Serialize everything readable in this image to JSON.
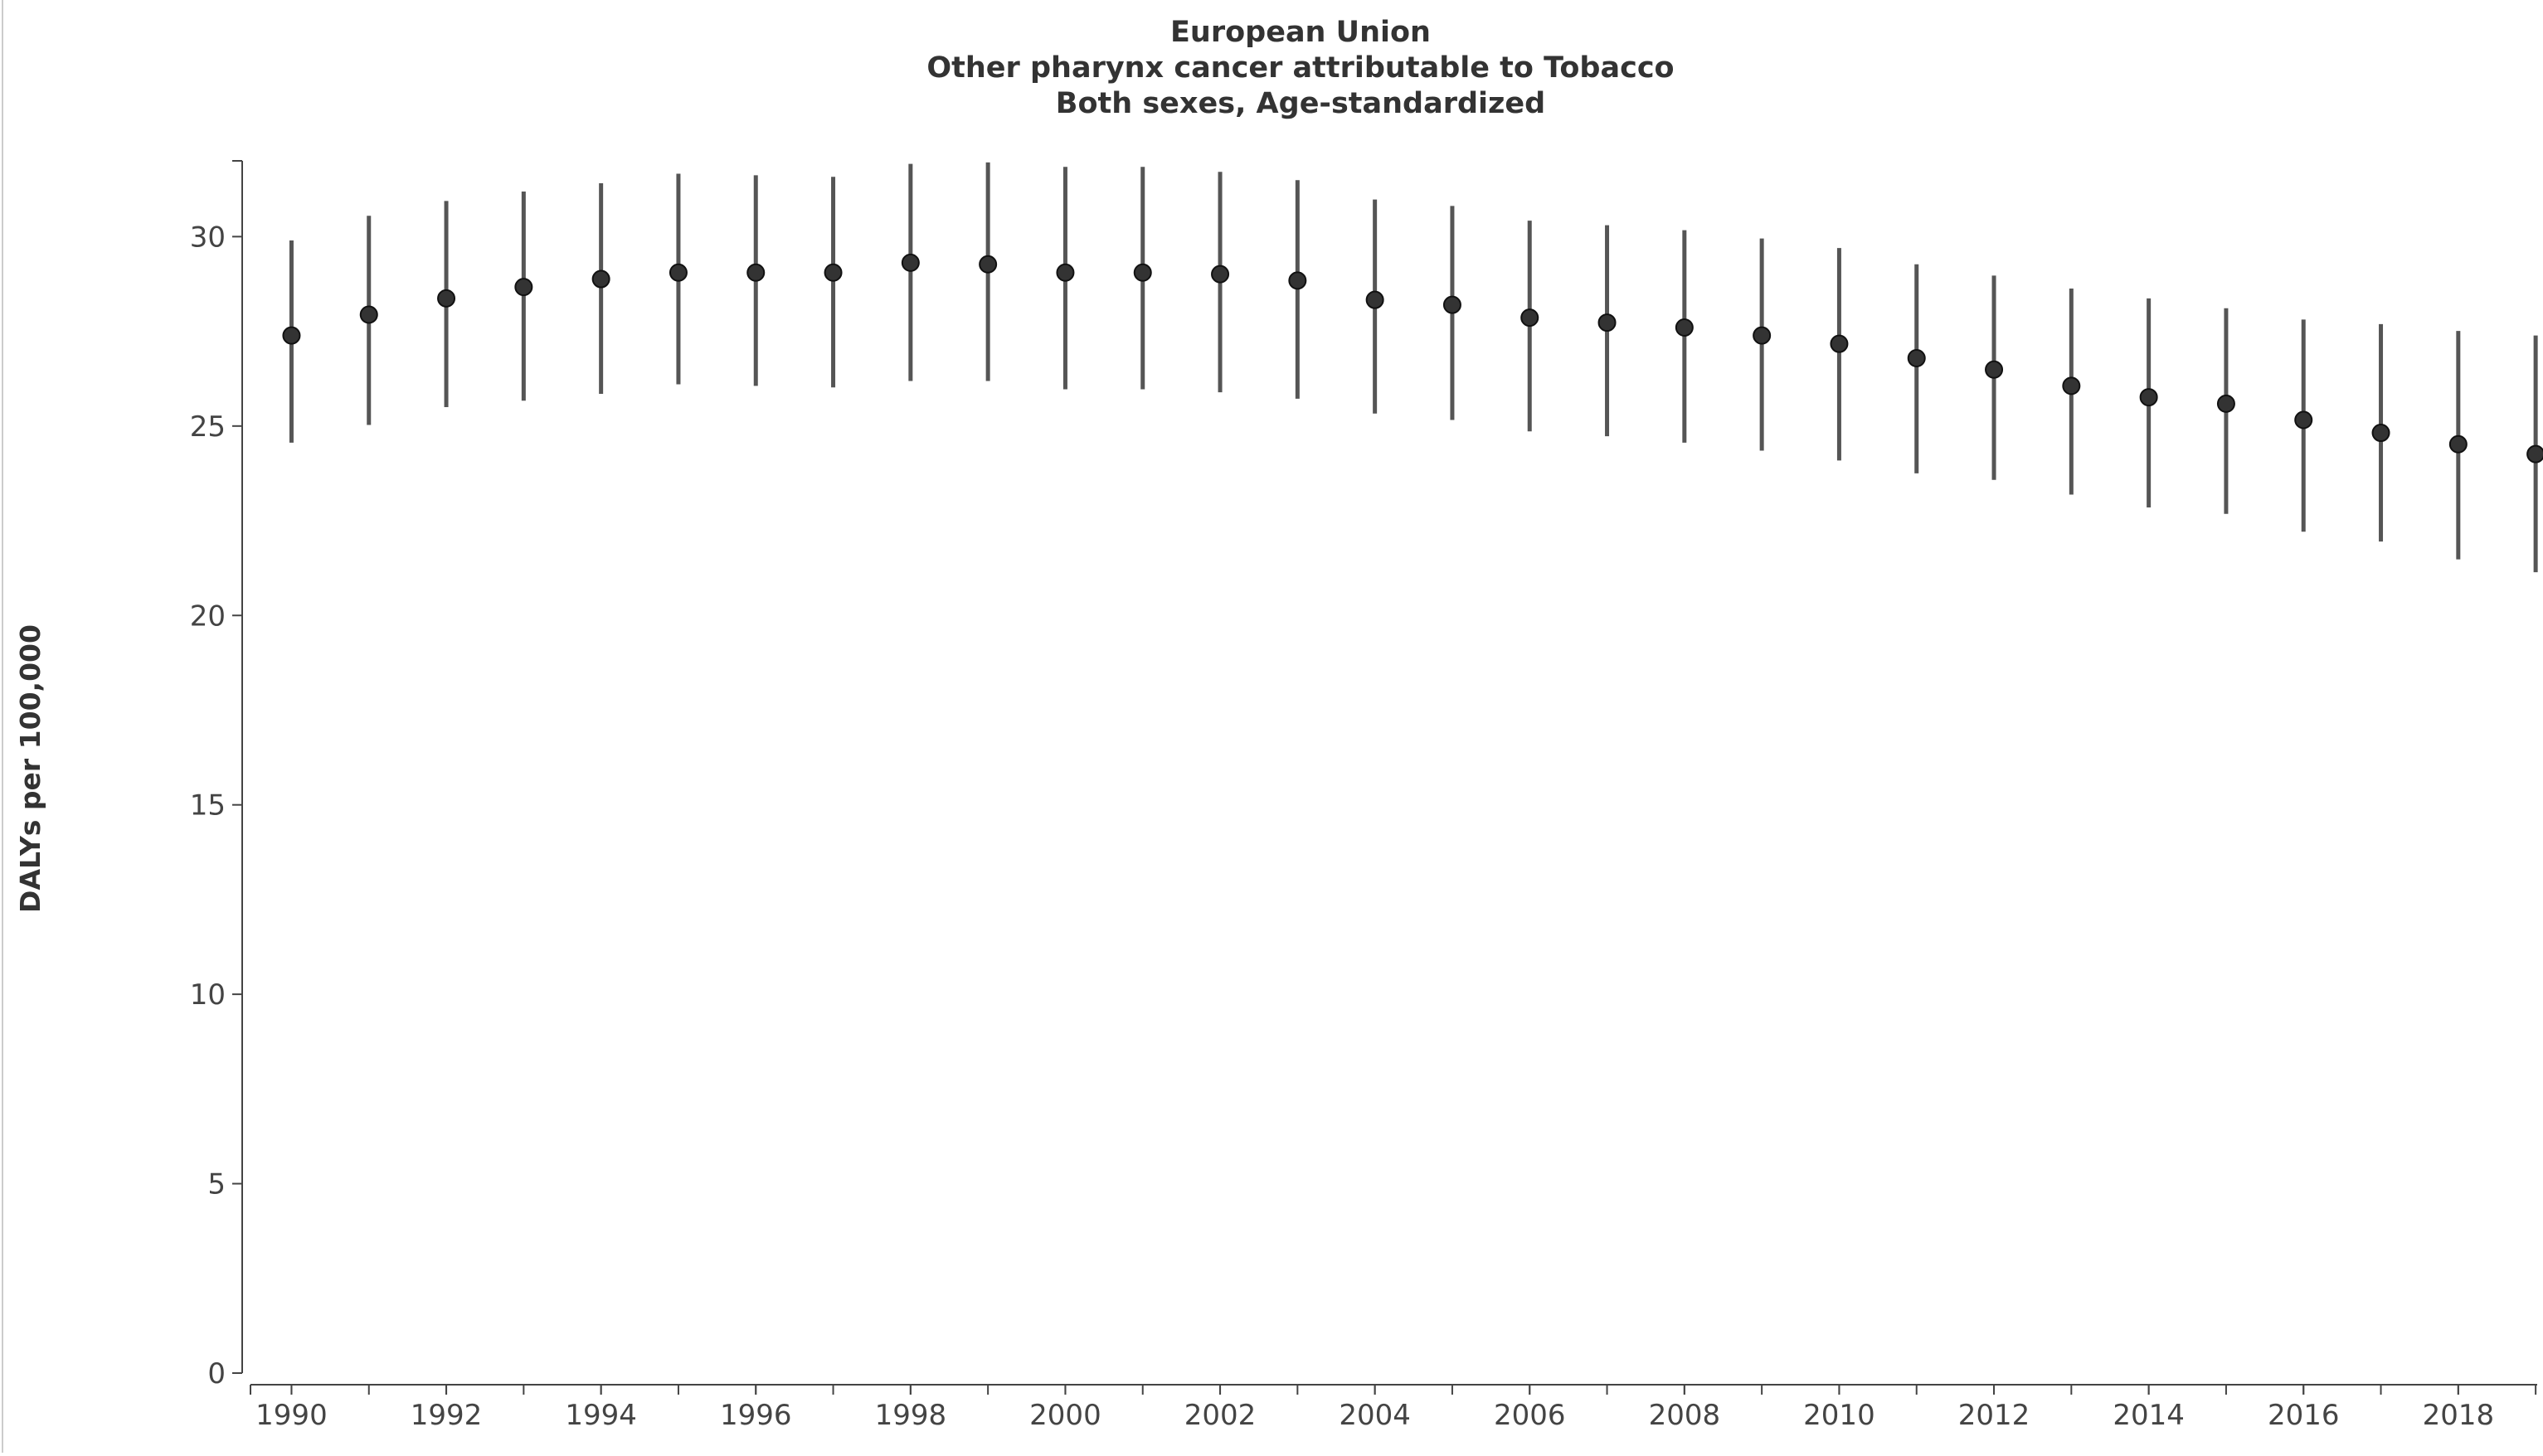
{
  "chart_data": {
    "type": "errorbar",
    "title": "European Union",
    "subtitle": "Other pharynx cancer attributable to Tobacco",
    "subtitle2": "Both sexes, Age-standardized",
    "y_label": "DALYs per 100,000",
    "x": [
      1990,
      1991,
      1992,
      1993,
      1994,
      1995,
      1996,
      1997,
      1998,
      1999,
      2000,
      2001,
      2002,
      2003,
      2004,
      2005,
      2006,
      2007,
      2008,
      2009,
      2010,
      2011,
      2012,
      2013,
      2014,
      2015,
      2016,
      2017,
      2018,
      2019
    ],
    "series": [
      {
        "color": "#333333",
        "values": [
          27.39,
          27.94,
          28.37,
          28.67,
          28.88,
          29.05,
          29.05,
          29.05,
          29.31,
          29.27,
          29.05,
          29.05,
          29.01,
          28.84,
          28.33,
          28.2,
          27.86,
          27.73,
          27.6,
          27.39,
          27.17,
          26.79,
          26.49,
          26.06,
          25.76,
          25.59,
          25.16,
          24.82,
          24.52,
          24.26
        ],
        "lower": [
          24.56,
          25.03,
          25.5,
          25.67,
          25.85,
          26.1,
          26.06,
          26.02,
          26.19,
          26.19,
          25.97,
          25.97,
          25.89,
          25.72,
          25.33,
          25.16,
          24.86,
          24.73,
          24.56,
          24.35,
          24.09,
          23.75,
          23.58,
          23.19,
          22.85,
          22.68,
          22.21,
          21.95,
          21.48,
          21.14
        ],
        "upper": [
          29.9,
          30.55,
          30.94,
          31.19,
          31.41,
          31.66,
          31.62,
          31.58,
          31.92,
          31.96,
          31.84,
          31.84,
          31.71,
          31.49,
          30.98,
          30.81,
          30.42,
          30.3,
          30.17,
          29.95,
          29.7,
          29.27,
          28.97,
          28.63,
          28.37,
          28.11,
          27.81,
          27.69,
          27.51,
          27.39
        ]
      }
    ],
    "xlim": [
      1989.47,
      2019.02
    ],
    "xticks": [
      1990,
      1992,
      1994,
      1996,
      1998,
      2000,
      2002,
      2004,
      2006,
      2008,
      2010,
      2012,
      2014,
      2016,
      2018
    ],
    "ylim": [
      0,
      32
    ],
    "yticks": [
      0,
      5,
      10,
      15,
      20,
      25,
      30
    ],
    "grid": false
  }
}
